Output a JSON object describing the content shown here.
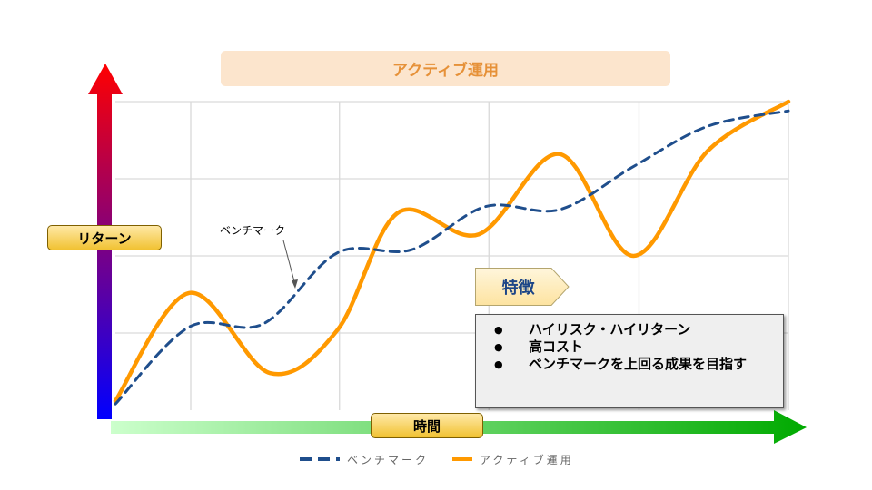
{
  "title": "アクティブ運用",
  "y_axis_label": "リターン",
  "x_axis_label": "時間",
  "benchmark_annotation": "ベンチマーク",
  "feature": {
    "heading": "特徴",
    "items": [
      "ハイリスク・ハイリターン",
      "高コスト",
      "ベンチマークを上回る成果を目指す"
    ]
  },
  "legend": [
    {
      "name": "ベンチマーク",
      "color": "#1f4e8c",
      "style": "dashed"
    },
    {
      "name": "アクティブ運用",
      "color": "#ff9900",
      "style": "solid"
    }
  ],
  "colors": {
    "y_arrow_top": "#ff0000",
    "y_arrow_bottom": "#0000ff",
    "x_arrow_start": "#ccffcc",
    "x_arrow_end": "#00aa00",
    "title_bg": "#fce5cd",
    "title_text": "#e69138"
  },
  "chart_data": {
    "type": "line",
    "xlabel": "時間",
    "ylabel": "リターン",
    "grid": true,
    "xlim": [
      0,
      100
    ],
    "ylim": [
      0,
      100
    ],
    "series": [
      {
        "name": "ベンチマーク",
        "x": [
          0,
          11,
          22,
          33,
          44,
          55,
          66,
          77,
          88,
          100
        ],
        "y": [
          2,
          27,
          28,
          51,
          52,
          66,
          65,
          79,
          92,
          97
        ]
      },
      {
        "name": "アクティブ運用",
        "x": [
          0,
          11,
          23,
          33,
          42,
          54,
          66,
          77,
          88,
          100
        ],
        "y": [
          3,
          38,
          12,
          26,
          64,
          57,
          83,
          50,
          84,
          100
        ]
      }
    ]
  }
}
